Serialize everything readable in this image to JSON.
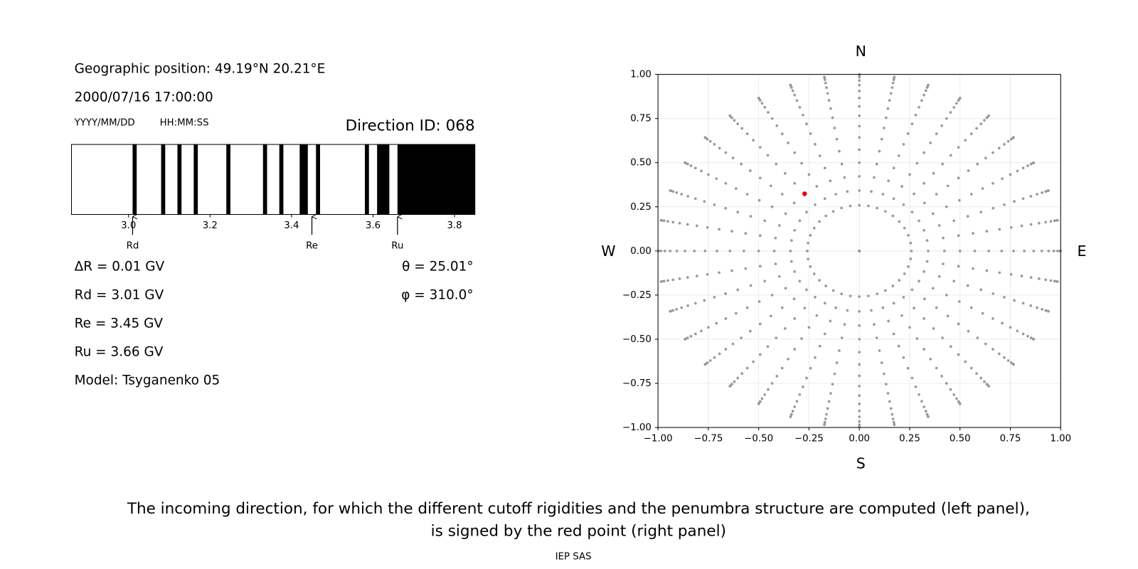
{
  "chart_data": [
    {
      "type": "penumbra",
      "position": "Geographic position: 49.19°N 20.21°E",
      "datetime": "2000/07/16 17:00:00",
      "date_format": "YYYY/MM/DD",
      "time_format": "HH:MM:SS",
      "title": "Direction ID: 068",
      "xlim": [
        2.86,
        3.85
      ],
      "xticks": [
        {
          "value": 3.0,
          "label": "3.0"
        },
        {
          "value": 3.2,
          "label": "3.2"
        },
        {
          "value": 3.4,
          "label": "3.4"
        },
        {
          "value": 3.6,
          "label": "3.6"
        },
        {
          "value": 3.8,
          "label": "3.8"
        }
      ],
      "bands": [
        [
          3.01,
          3.02
        ],
        [
          3.08,
          3.09
        ],
        [
          3.12,
          3.13
        ],
        [
          3.16,
          3.17
        ],
        [
          3.24,
          3.25
        ],
        [
          3.33,
          3.34
        ],
        [
          3.37,
          3.38
        ],
        [
          3.42,
          3.44
        ],
        [
          3.46,
          3.47
        ],
        [
          3.58,
          3.59
        ],
        [
          3.61,
          3.64
        ],
        [
          3.66,
          3.85
        ]
      ],
      "color": "#000000",
      "markers": [
        {
          "name": "Rd",
          "value": 3.01
        },
        {
          "name": "Re",
          "value": 3.45
        },
        {
          "name": "Ru",
          "value": 3.66
        }
      ],
      "annotations": [
        "ΔR = 0.01 GV",
        "Rd = 3.01 GV",
        "Re = 3.45 GV",
        "Ru = 3.66 GV",
        "Model: Tsyganenko 05"
      ],
      "angle_labels": [
        "θ = 25.01°",
        "φ = 310.0°"
      ]
    },
    {
      "type": "polar-scatter",
      "xlim": [
        -1,
        1
      ],
      "ylim": [
        -1,
        1
      ],
      "xticks": [
        {
          "value": -1,
          "label": "−1.00"
        },
        {
          "value": -0.75,
          "label": "−0.75"
        },
        {
          "value": -0.5,
          "label": "−0.50"
        },
        {
          "value": -0.25,
          "label": "−0.25"
        },
        {
          "value": 0,
          "label": "0.00"
        },
        {
          "value": 0.25,
          "label": "0.25"
        },
        {
          "value": 0.5,
          "label": "0.50"
        },
        {
          "value": 0.75,
          "label": "0.75"
        },
        {
          "value": 1,
          "label": "1.00"
        }
      ],
      "yticks": [
        {
          "value": -1,
          "label": "−1.00"
        },
        {
          "value": -0.75,
          "label": "−0.75"
        },
        {
          "value": -0.5,
          "label": "−0.50"
        },
        {
          "value": -0.25,
          "label": "−0.25"
        },
        {
          "value": 0,
          "label": "0.00"
        },
        {
          "value": 0.25,
          "label": "0.25"
        },
        {
          "value": 0.5,
          "label": "0.50"
        },
        {
          "value": 0.75,
          "label": "0.75"
        },
        {
          "value": 1,
          "label": "1.00"
        }
      ],
      "grid": true,
      "compass": {
        "top": "N",
        "bottom": "S",
        "left": "W",
        "right": "E"
      },
      "zenith_angles": [
        0,
        15,
        20,
        25,
        30,
        35,
        40,
        45,
        50,
        55,
        60,
        65,
        70,
        75,
        80,
        85,
        90
      ],
      "azimuths": [
        0,
        10,
        20,
        30,
        40,
        50,
        60,
        70,
        80,
        90,
        100,
        110,
        120,
        130,
        140,
        150,
        160,
        170,
        180,
        190,
        200,
        210,
        220,
        230,
        240,
        250,
        260,
        270,
        280,
        290,
        300,
        310,
        320,
        330,
        340,
        350
      ],
      "color": "#999999",
      "selected": {
        "theta": 25.01,
        "phi": 310.0,
        "color": "#e8000b"
      }
    }
  ],
  "caption": [
    "The incoming direction, for which the different cutoff rigidities and the penumbra structure are computed (left panel),",
    "is signed by the red point (right panel)"
  ],
  "footer": "IEP SAS"
}
